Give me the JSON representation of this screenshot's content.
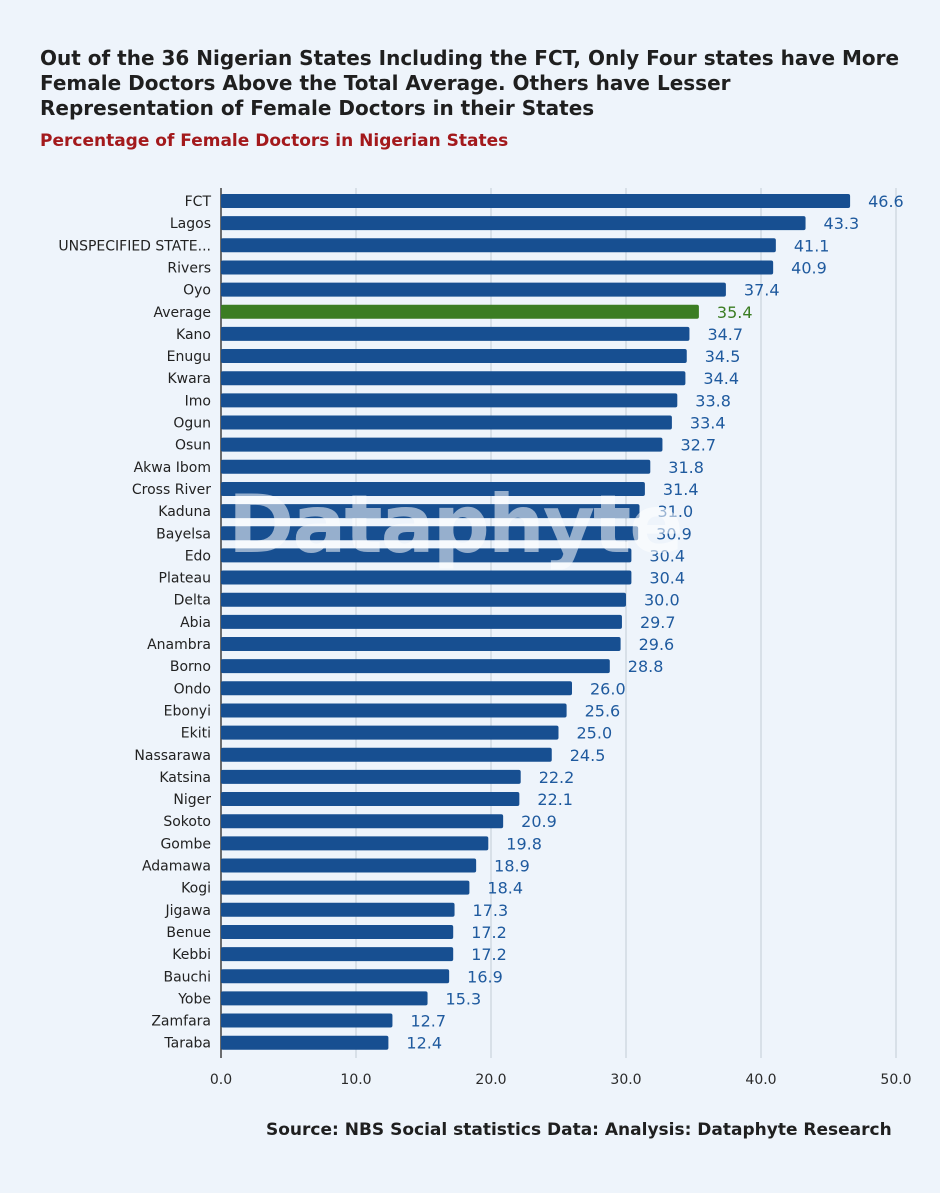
{
  "header": {
    "title": "Out of the 36 Nigerian States Including the FCT, Only Four states have More Female Doctors Above the Total Average. Others have Lesser Representation of Female Doctors in their States",
    "subtitle": "Percentage of Female Doctors in Nigerian States"
  },
  "footer": {
    "source": "Source: NBS Social statistics Data: Analysis: Dataphyte Research"
  },
  "watermark": "Dataphyte",
  "colors": {
    "bar": "#174f91",
    "highlight": "#3b7d23",
    "label": "#1f5a9e",
    "highlight_label": "#3b7d23",
    "grid": "#c9d2dc",
    "subtitle": "#a3191c"
  },
  "chart_data": {
    "type": "bar",
    "orientation": "horizontal",
    "title": "Out of the 36 Nigerian States Including the FCT, Only Four states have More Female Doctors Above the Total Average. Others have Lesser Representation of Female Doctors in their States",
    "subtitle": "Percentage of Female Doctors in Nigerian States",
    "categories": [
      "FCT",
      "Lagos",
      "UNSPECIFIED STATE...",
      "Rivers",
      "Oyo",
      "Average",
      "Kano",
      "Enugu",
      "Kwara",
      "Imo",
      "Ogun",
      "Osun",
      "Akwa Ibom",
      "Cross River",
      "Kaduna",
      "Bayelsa",
      "Edo",
      "Plateau",
      "Delta",
      "Abia",
      "Anambra",
      "Borno",
      "Ondo",
      "Ebonyi",
      "Ekiti",
      "Nassarawa",
      "Katsina",
      "Niger",
      "Sokoto",
      "Gombe",
      "Adamawa",
      "Kogi",
      "Jigawa",
      "Benue",
      "Kebbi",
      "Bauchi",
      "Yobe",
      "Zamfara",
      "Taraba"
    ],
    "values": [
      46.6,
      43.3,
      41.1,
      40.9,
      37.4,
      35.4,
      34.7,
      34.5,
      34.4,
      33.8,
      33.4,
      32.7,
      31.8,
      31.4,
      31.0,
      30.9,
      30.4,
      30.4,
      30.0,
      29.7,
      29.6,
      28.8,
      26.0,
      25.6,
      25.0,
      24.5,
      22.2,
      22.1,
      20.9,
      19.8,
      18.9,
      18.4,
      17.3,
      17.2,
      17.2,
      16.9,
      15.3,
      12.7,
      12.4
    ],
    "value_labels": [
      "46.6",
      "43.3",
      "41.1",
      "40.9",
      "37.4",
      "35.4",
      "34.7",
      "34.5",
      "34.4",
      "33.8",
      "33.4",
      "32.7",
      "31.8",
      "31.4",
      "31.0",
      "30.9",
      "30.4",
      "30.4",
      "30.0",
      "29.7",
      "29.6",
      "28.8",
      "26.0",
      "25.6",
      "25.0",
      "24.5",
      "22.2",
      "22.1",
      "20.9",
      "19.8",
      "18.9",
      "18.4",
      "17.3",
      "17.2",
      "17.2",
      "16.9",
      "15.3",
      "12.7",
      "12.4"
    ],
    "highlight_category": "Average",
    "xlim": [
      0,
      50
    ],
    "xticks": [
      "0.0",
      "10.0",
      "20.0",
      "30.0",
      "40.0",
      "50.0"
    ],
    "xtick_values": [
      0,
      10,
      20,
      30,
      40,
      50
    ],
    "grid": true,
    "legend": "none"
  }
}
